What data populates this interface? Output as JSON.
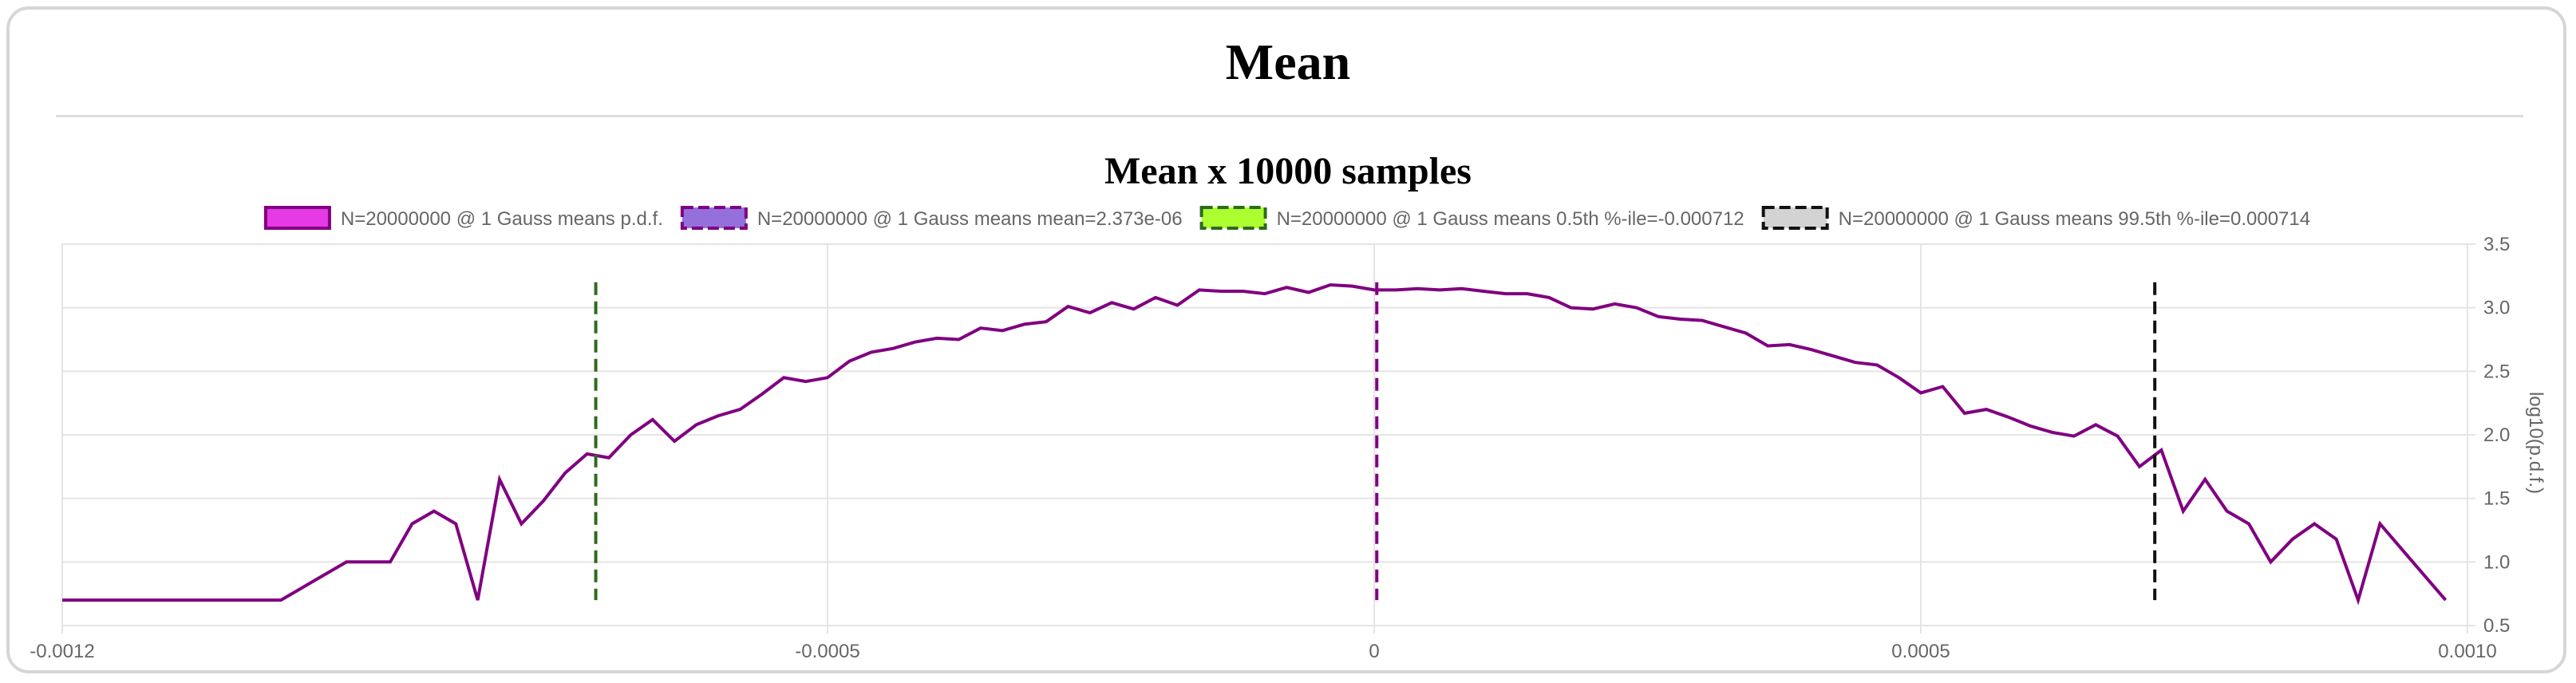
{
  "page": {
    "title": "Mean"
  },
  "chart_data": {
    "type": "line",
    "title": "Mean x 10000 samples",
    "xlabel": "",
    "ylabel": "log10(p.d.f.)",
    "xlim": [
      -0.0012,
      0.001
    ],
    "ylim": [
      0.5,
      3.5
    ],
    "x_ticks": [
      {
        "value": -0.0012,
        "label": "-0.0012"
      },
      {
        "value": -0.0005,
        "label": "-0.0005"
      },
      {
        "value": 0,
        "label": "0"
      },
      {
        "value": 0.0005,
        "label": "0.0005"
      },
      {
        "value": 0.001,
        "label": "0.0010"
      }
    ],
    "y_ticks": [
      {
        "value": 0.5,
        "label": "0.5"
      },
      {
        "value": 1.0,
        "label": "1.0"
      },
      {
        "value": 1.5,
        "label": "1.5"
      },
      {
        "value": 2.0,
        "label": "2.0"
      },
      {
        "value": 2.5,
        "label": "2.5"
      },
      {
        "value": 3.0,
        "label": "3.0"
      },
      {
        "value": 3.5,
        "label": "3.5"
      }
    ],
    "grid": true,
    "legend_position": "top",
    "series": [
      {
        "name": "N=20000000 @ 1 Gauss means p.d.f.",
        "kind": "line",
        "color": "#800080",
        "swatch_fill": "#e63ae6",
        "swatch_border": "#800080",
        "dashed": false,
        "points": [
          [
            -0.0012,
            0.7
          ],
          [
            -0.001,
            0.7
          ],
          [
            -0.00094,
            1.0
          ],
          [
            -0.0009,
            1.0
          ],
          [
            -0.00088,
            1.3
          ],
          [
            -0.00086,
            1.4
          ],
          [
            -0.00084,
            1.3
          ],
          [
            -0.00082,
            0.7
          ],
          [
            -0.0008,
            1.65
          ],
          [
            -0.00078,
            1.3
          ],
          [
            -0.00076,
            1.48
          ],
          [
            -0.00074,
            1.7
          ],
          [
            -0.00072,
            1.85
          ],
          [
            -0.0007,
            1.82
          ],
          [
            -0.00068,
            2.0
          ],
          [
            -0.00066,
            2.12
          ],
          [
            -0.00064,
            1.95
          ],
          [
            -0.00062,
            2.08
          ],
          [
            -0.0006,
            2.15
          ],
          [
            -0.00058,
            2.2
          ],
          [
            -0.00056,
            2.32
          ],
          [
            -0.00054,
            2.45
          ],
          [
            -0.00052,
            2.42
          ],
          [
            -0.0005,
            2.45
          ],
          [
            -0.00048,
            2.58
          ],
          [
            -0.00046,
            2.65
          ],
          [
            -0.00044,
            2.68
          ],
          [
            -0.00042,
            2.73
          ],
          [
            -0.0004,
            2.76
          ],
          [
            -0.00038,
            2.75
          ],
          [
            -0.00036,
            2.84
          ],
          [
            -0.00034,
            2.82
          ],
          [
            -0.00032,
            2.87
          ],
          [
            -0.0003,
            2.89
          ],
          [
            -0.00028,
            3.01
          ],
          [
            -0.00026,
            2.96
          ],
          [
            -0.00024,
            3.04
          ],
          [
            -0.00022,
            2.99
          ],
          [
            -0.0002,
            3.08
          ],
          [
            -0.00018,
            3.02
          ],
          [
            -0.00016,
            3.14
          ],
          [
            -0.00014,
            3.13
          ],
          [
            -0.00012,
            3.13
          ],
          [
            -0.0001,
            3.11
          ],
          [
            -8e-05,
            3.16
          ],
          [
            -6e-05,
            3.12
          ],
          [
            -4e-05,
            3.18
          ],
          [
            -2e-05,
            3.17
          ],
          [
            0.0,
            3.14
          ],
          [
            2e-05,
            3.14
          ],
          [
            4e-05,
            3.15
          ],
          [
            6e-05,
            3.14
          ],
          [
            8e-05,
            3.15
          ],
          [
            0.0001,
            3.13
          ],
          [
            0.00012,
            3.11
          ],
          [
            0.00014,
            3.11
          ],
          [
            0.00016,
            3.08
          ],
          [
            0.00018,
            3.0
          ],
          [
            0.0002,
            2.99
          ],
          [
            0.00022,
            3.03
          ],
          [
            0.00024,
            3.0
          ],
          [
            0.00026,
            2.93
          ],
          [
            0.00028,
            2.91
          ],
          [
            0.0003,
            2.9
          ],
          [
            0.00032,
            2.85
          ],
          [
            0.00034,
            2.8
          ],
          [
            0.00036,
            2.7
          ],
          [
            0.00038,
            2.71
          ],
          [
            0.0004,
            2.67
          ],
          [
            0.00042,
            2.62
          ],
          [
            0.00044,
            2.57
          ],
          [
            0.00046,
            2.55
          ],
          [
            0.00048,
            2.45
          ],
          [
            0.0005,
            2.33
          ],
          [
            0.00052,
            2.38
          ],
          [
            0.00054,
            2.17
          ],
          [
            0.00056,
            2.2
          ],
          [
            0.00058,
            2.14
          ],
          [
            0.0006,
            2.07
          ],
          [
            0.00062,
            2.02
          ],
          [
            0.00064,
            1.99
          ],
          [
            0.00066,
            2.08
          ],
          [
            0.00068,
            1.99
          ],
          [
            0.0007,
            1.75
          ],
          [
            0.00072,
            1.88
          ],
          [
            0.00074,
            1.4
          ],
          [
            0.00076,
            1.65
          ],
          [
            0.00078,
            1.4
          ],
          [
            0.0008,
            1.3
          ],
          [
            0.00082,
            1.0
          ],
          [
            0.00084,
            1.18
          ],
          [
            0.00086,
            1.3
          ],
          [
            0.00088,
            1.18
          ],
          [
            0.0009,
            0.7
          ],
          [
            0.00092,
            1.3
          ],
          [
            0.00094,
            1.1
          ],
          [
            0.00096,
            0.9
          ],
          [
            0.00098,
            0.7
          ]
        ]
      },
      {
        "name": "N=20000000 @ 1 Gauss means mean=2.373e-06",
        "kind": "vline",
        "x": 2.373e-06,
        "y_range": [
          0.7,
          3.2
        ],
        "color": "#800080",
        "swatch_fill": "#9370db",
        "swatch_border": "#800080",
        "dashed": true
      },
      {
        "name": "N=20000000 @ 1 Gauss means 0.5th %-ile=-0.000712",
        "kind": "vline",
        "x": -0.000712,
        "y_range": [
          0.7,
          3.2
        ],
        "color": "#2d6a1e",
        "swatch_fill": "#adff2f",
        "swatch_border": "#2d6a1e",
        "dashed": true
      },
      {
        "name": "N=20000000 @ 1 Gauss means 99.5th %-ile=0.000714",
        "kind": "vline",
        "x": 0.000714,
        "y_range": [
          0.7,
          3.2
        ],
        "color": "#111111",
        "swatch_fill": "#d3d3d3",
        "swatch_border": "#111111",
        "dashed": true
      }
    ]
  }
}
